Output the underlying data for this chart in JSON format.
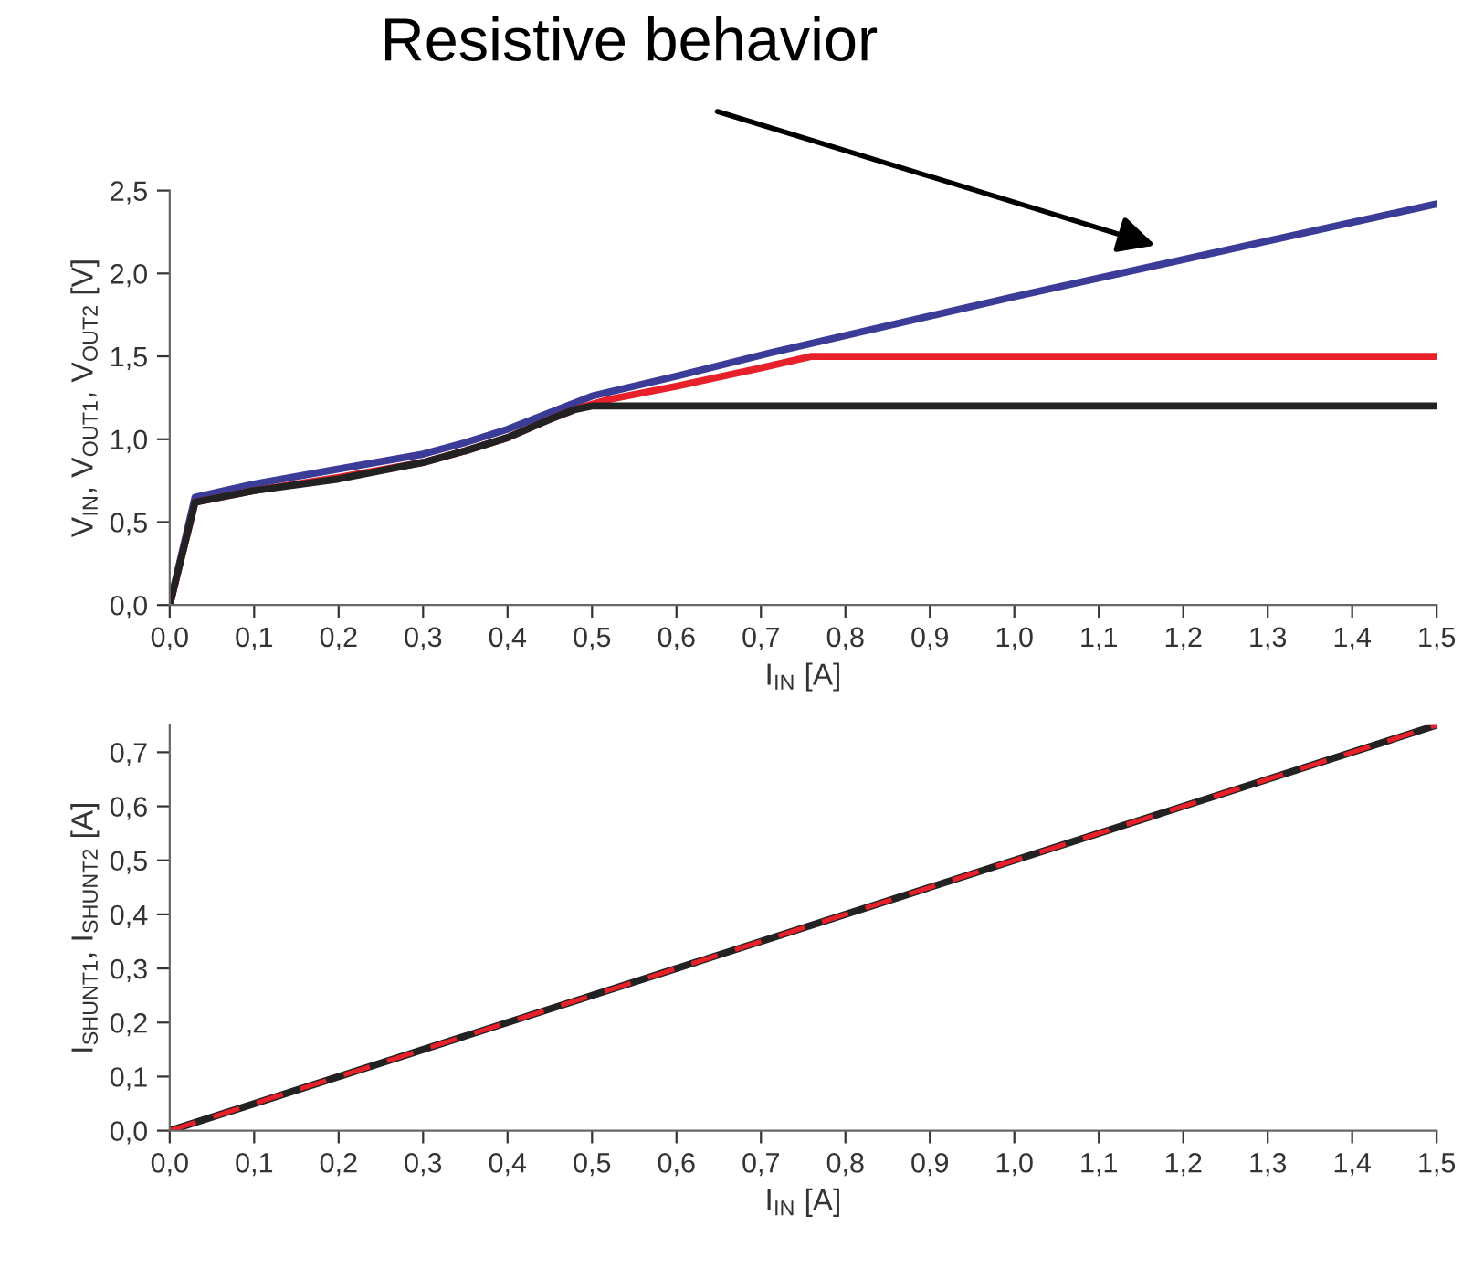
{
  "chart_data": [
    {
      "type": "line",
      "xlabel": "I$_{IN}$ [A]",
      "ylabel": "V$_{IN}$, V$_{OUT1}$, V$_{OUT2}$ [V]",
      "annotations": [
        "Resistive behavior"
      ],
      "series": [
        {
          "color": "#3b3b98",
          "x": [
            0,
            0.03,
            0.1,
            0.2,
            0.3,
            0.35,
            0.4,
            0.45,
            0.48,
            0.5,
            0.6,
            0.71,
            1.0,
            1.5
          ],
          "values": [
            0,
            0.65,
            0.73,
            0.82,
            0.91,
            0.98,
            1.06,
            1.16,
            1.22,
            1.26,
            1.38,
            1.52,
            1.86,
            2.42
          ]
        },
        {
          "color": "#e8202a",
          "x": [
            0,
            0.03,
            0.1,
            0.2,
            0.3,
            0.35,
            0.4,
            0.45,
            0.48,
            0.52,
            0.6,
            0.7,
            0.76,
            1.5
          ],
          "values": [
            0,
            0.62,
            0.69,
            0.77,
            0.86,
            0.93,
            1.01,
            1.12,
            1.18,
            1.24,
            1.32,
            1.43,
            1.5,
            1.5
          ]
        },
        {
          "color": "#222222",
          "x": [
            0,
            0.03,
            0.1,
            0.2,
            0.3,
            0.35,
            0.4,
            0.45,
            0.48,
            0.5,
            1.5
          ],
          "values": [
            0,
            0.62,
            0.69,
            0.76,
            0.86,
            0.93,
            1.01,
            1.12,
            1.18,
            1.2,
            1.2
          ]
        }
      ],
      "xlim": [
        0,
        1.5
      ],
      "ylim": [
        0,
        2.5
      ],
      "xticks": [
        {
          "value": 0,
          "label": "0,0"
        },
        {
          "value": 0.1,
          "label": "0,1"
        },
        {
          "value": 0.2,
          "label": "0,2"
        },
        {
          "value": 0.3,
          "label": "0,3"
        },
        {
          "value": 0.4,
          "label": "0,4"
        },
        {
          "value": 0.5,
          "label": "0,5"
        },
        {
          "value": 0.6,
          "label": "0,6"
        },
        {
          "value": 0.7,
          "label": "0,7"
        },
        {
          "value": 0.8,
          "label": "0,8"
        },
        {
          "value": 0.9,
          "label": "0,9"
        },
        {
          "value": 1.0,
          "label": "1,0"
        },
        {
          "value": 1.1,
          "label": "1,1"
        },
        {
          "value": 1.2,
          "label": "1,2"
        },
        {
          "value": 1.3,
          "label": "1,3"
        },
        {
          "value": 1.4,
          "label": "1,4"
        },
        {
          "value": 1.5,
          "label": "1,5"
        }
      ],
      "yticks": [
        {
          "value": 0,
          "label": "0,0"
        },
        {
          "value": 0.5,
          "label": "0,5"
        },
        {
          "value": 1.0,
          "label": "1,0"
        },
        {
          "value": 1.5,
          "label": "1,5"
        },
        {
          "value": 2.0,
          "label": "2,0"
        },
        {
          "value": 2.5,
          "label": "2,5"
        }
      ],
      "grid": false,
      "legend": false,
      "marker": "none"
    },
    {
      "type": "line",
      "xlabel": "I$_{IN}$ [A]",
      "ylabel": "I$_{SHUNT1}$, I$_{SHUNT2}$ [A]",
      "series": [
        {
          "color": "#222222",
          "x": [
            0,
            1.5
          ],
          "values": [
            0,
            0.75
          ],
          "line_style": "solid"
        },
        {
          "color": "#e8202a",
          "x": [
            0,
            1.5
          ],
          "values": [
            0,
            0.75
          ],
          "line_style": "dashed"
        }
      ],
      "xlim": [
        0,
        1.5
      ],
      "ylim": [
        0,
        0.75
      ],
      "xticks": [
        {
          "value": 0,
          "label": "0,0"
        },
        {
          "value": 0.1,
          "label": "0,1"
        },
        {
          "value": 0.2,
          "label": "0,2"
        },
        {
          "value": 0.3,
          "label": "0,3"
        },
        {
          "value": 0.4,
          "label": "0,4"
        },
        {
          "value": 0.5,
          "label": "0,5"
        },
        {
          "value": 0.6,
          "label": "0,6"
        },
        {
          "value": 0.7,
          "label": "0,7"
        },
        {
          "value": 0.8,
          "label": "0,8"
        },
        {
          "value": 0.9,
          "label": "0,9"
        },
        {
          "value": 1.0,
          "label": "1,0"
        },
        {
          "value": 1.1,
          "label": "1,1"
        },
        {
          "value": 1.2,
          "label": "1,2"
        },
        {
          "value": 1.3,
          "label": "1,3"
        },
        {
          "value": 1.4,
          "label": "1,4"
        },
        {
          "value": 1.5,
          "label": "1,5"
        }
      ],
      "yticks": [
        {
          "value": 0,
          "label": "0,0"
        },
        {
          "value": 0.1,
          "label": "0,1"
        },
        {
          "value": 0.2,
          "label": "0,2"
        },
        {
          "value": 0.3,
          "label": "0,3"
        },
        {
          "value": 0.4,
          "label": "0,4"
        },
        {
          "value": 0.5,
          "label": "0,5"
        },
        {
          "value": 0.6,
          "label": "0,6"
        },
        {
          "value": 0.7,
          "label": "0,7"
        }
      ],
      "grid": false,
      "legend": false,
      "marker": "none"
    }
  ]
}
